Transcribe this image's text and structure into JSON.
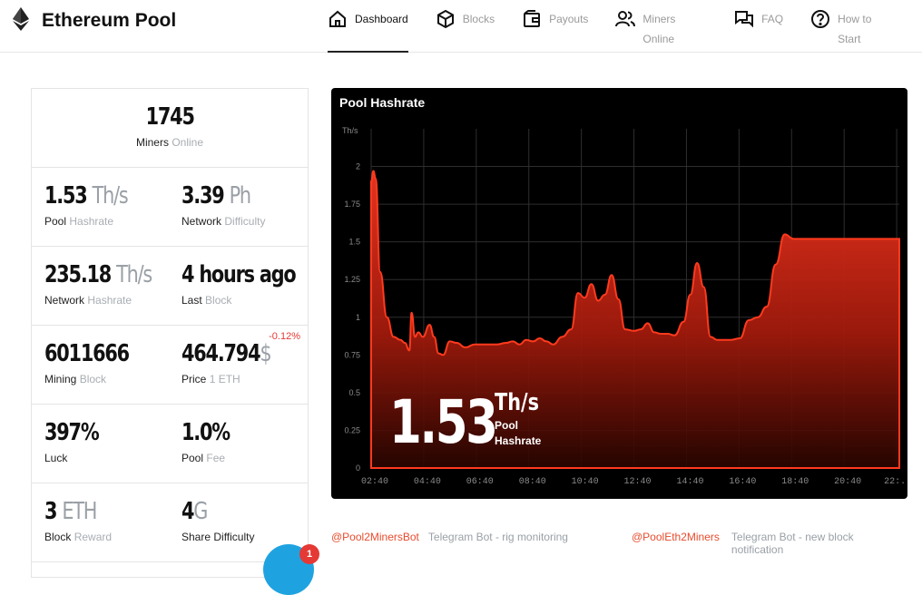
{
  "brand": {
    "name": "Ethereum Pool",
    "icon": "ethereum-logo-icon"
  },
  "nav": [
    {
      "label": "Dashboard",
      "icon": "home-icon",
      "active": true
    },
    {
      "label": "Blocks",
      "icon": "cube-icon",
      "active": false
    },
    {
      "label": "Payouts",
      "icon": "wallet-icon",
      "active": false
    },
    {
      "label": "Miners Online",
      "icon": "users-icon",
      "active": false
    },
    {
      "label": "FAQ",
      "icon": "chat-icon",
      "active": false
    },
    {
      "label": "How to Start",
      "icon": "help-circle-icon",
      "active": false
    }
  ],
  "stats": {
    "miners": {
      "value": "1745",
      "label": "Miners",
      "label_mute": "Online"
    },
    "pool_hashrate": {
      "value": "1.53",
      "unit": "Th/s",
      "label": "Pool",
      "label_mute": "Hashrate"
    },
    "network_difficulty": {
      "value": "3.39",
      "unit": "Ph",
      "label": "Network",
      "label_mute": "Difficulty"
    },
    "network_hashrate": {
      "value": "235.18",
      "unit": "Th/s",
      "label": "Network",
      "label_mute": "Hashrate"
    },
    "last_block": {
      "value": "4 hours ago",
      "label": "Last",
      "label_mute": "Block"
    },
    "mining_block": {
      "value": "6011666",
      "label": "Mining",
      "label_mute": "Block"
    },
    "price": {
      "value": "464.794",
      "unit": "$",
      "change": "-0.12%",
      "label": "Price",
      "label_mute": "1 ETH"
    },
    "luck": {
      "value": "397%",
      "label": "Luck"
    },
    "pool_fee": {
      "value": "1.0%",
      "label": "Pool",
      "label_mute": "Fee"
    },
    "block_reward": {
      "value": "3",
      "unit": "ETH",
      "label": "Block",
      "label_mute": "Reward"
    },
    "share_difficulty": {
      "value": "4",
      "unit": "G",
      "label": "Share Difficulty"
    }
  },
  "chart": {
    "title": "Pool Hashrate",
    "overlay_value": "1.53",
    "overlay_unit": "Th/s",
    "overlay_label_1": "Pool",
    "overlay_label_2": "Hashrate"
  },
  "chart_data": {
    "type": "area",
    "title": "Pool Hashrate",
    "ylabel": "Th/s",
    "ylim": [
      0,
      2.25
    ],
    "yticks": [
      0,
      0.25,
      0.5,
      0.75,
      1,
      1.25,
      1.5,
      1.75,
      2
    ],
    "xticks": [
      "02:40",
      "04:40",
      "06:40",
      "08:40",
      "10:40",
      "12:40",
      "14:40",
      "16:40",
      "18:40",
      "20:40",
      "22:..."
    ],
    "x_hours": [
      0,
      0.1,
      0.2,
      0.4,
      0.7,
      1,
      1.3,
      1.5,
      1.7,
      1.8,
      1.95,
      2.1,
      2.3,
      2.6,
      2.8,
      3,
      3.2,
      3.5,
      3.8,
      4.2,
      4.6,
      5,
      5.3,
      5.6,
      6,
      6.3,
      6.6,
      6.9,
      7.2,
      7.5,
      7.8,
      8.1,
      8.5,
      8.9,
      9.2,
      9.5,
      9.8,
      10.1,
      10.4,
      10.7,
      11,
      11.3,
      11.7,
      12,
      12.3,
      12.6,
      12.9,
      13.2,
      13.5,
      13.9,
      14.2,
      14.5,
      14.8,
      15.1,
      15.4,
      15.7,
      16,
      16.4,
      16.8,
      17.2,
      17.6,
      18,
      18.4,
      18.8,
      19.2,
      19.6,
      19.9,
      20.2,
      20.5,
      20.8,
      21.2,
      21.6,
      21.9,
      22.2,
      22.5,
      22.8,
      23.1,
      23.3,
      23.5
    ],
    "values": [
      1.9,
      1.97,
      1.92,
      1.3,
      1.0,
      0.87,
      0.85,
      0.83,
      0.78,
      1.03,
      0.87,
      0.9,
      0.87,
      0.95,
      0.87,
      0.76,
      0.75,
      0.84,
      0.83,
      0.8,
      0.82,
      0.82,
      0.82,
      0.82,
      0.83,
      0.84,
      0.82,
      0.85,
      0.84,
      0.86,
      0.84,
      0.82,
      0.87,
      0.92,
      1.16,
      1.13,
      1.22,
      1.11,
      1.15,
      1.28,
      1.12,
      0.92,
      0.91,
      0.92,
      0.96,
      0.9,
      0.89,
      0.89,
      0.88,
      0.97,
      1.15,
      1.36,
      1.2,
      0.87,
      0.85,
      0.85,
      0.85,
      0.86,
      0.98,
      1.0,
      1.07,
      1.35,
      1.55,
      1.52,
      1.52,
      1.52,
      1.52,
      1.52,
      1.52,
      1.52,
      1.52,
      1.52,
      1.52,
      1.52,
      1.52,
      1.52,
      1.52,
      1.52,
      1.52
    ],
    "grid": true,
    "fill_color": "#e8321e"
  },
  "telegram": [
    {
      "handle": "@Pool2MinersBot",
      "desc": "Telegram Bot - rig monitoring"
    },
    {
      "handle": "@PoolEth2Miners",
      "desc": "Telegram Bot - new block notification"
    }
  ],
  "chat": {
    "badge": "1",
    "icon": "chat-bubble-icon"
  }
}
